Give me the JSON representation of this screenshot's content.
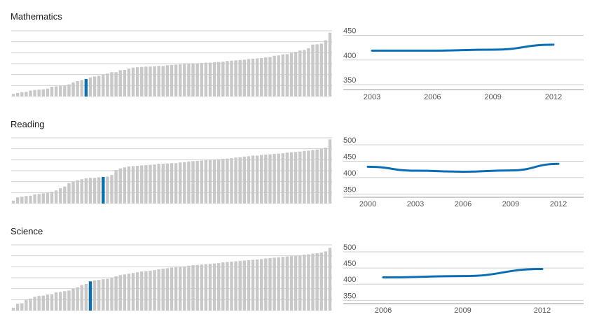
{
  "colors": {
    "bar": "#c8c8c8",
    "highlight": "#0a6eb4",
    "grid": "#cfcfcf",
    "line": "#0a6eb4"
  },
  "chart_data": [
    {
      "type": "bar",
      "title": "Mathematics",
      "highlight_index": 17,
      "values": [
        368,
        371,
        373,
        374,
        378,
        380,
        381,
        382,
        384,
        390,
        391,
        392,
        394,
        397,
        403,
        407,
        410,
        413,
        418,
        421,
        423,
        427,
        430,
        434,
        434,
        440,
        441,
        445,
        448,
        449,
        450,
        451,
        451,
        452,
        453,
        453,
        455,
        456,
        457,
        458,
        459,
        460,
        461,
        461,
        462,
        463,
        463,
        464,
        465,
        466,
        468,
        469,
        470,
        471,
        472,
        474,
        475,
        476,
        477,
        479,
        480,
        484,
        485,
        488,
        489,
        494,
        496,
        500,
        501,
        507,
        518,
        519,
        521,
        531,
        554
      ]
    },
    {
      "type": "line",
      "title": "",
      "x": [
        2003,
        2006,
        2009,
        2012
      ],
      "y": [
        419,
        419,
        421,
        431
      ],
      "yticks": [
        350,
        400,
        450
      ],
      "ylim": [
        340,
        465
      ]
    },
    {
      "type": "bar",
      "title": "Reading",
      "highlight_index": 21,
      "values": [
        384,
        394,
        396,
        398,
        399,
        403,
        404,
        406,
        408,
        411,
        415,
        422,
        427,
        437,
        441,
        446,
        449,
        452,
        453,
        453,
        455,
        456,
        457,
        462,
        477,
        482,
        485,
        488,
        489,
        490,
        491,
        492,
        493,
        494,
        496,
        496,
        497,
        498,
        498,
        500,
        501,
        503,
        504,
        505,
        506,
        507,
        508,
        509,
        510,
        511,
        512,
        513,
        515,
        516,
        518,
        519,
        521,
        521,
        523,
        524,
        525,
        526,
        527,
        528,
        530,
        531,
        532,
        533,
        535,
        536,
        538,
        539,
        541,
        545,
        570
      ]
    },
    {
      "type": "line",
      "title": "",
      "x": [
        2000,
        2003,
        2006,
        2009,
        2012
      ],
      "y": [
        433,
        421,
        418,
        422,
        442
      ],
      "yticks": [
        350,
        400,
        450,
        500
      ],
      "ylim": [
        340,
        515
      ]
    },
    {
      "type": "bar",
      "title": "Science",
      "highlight_index": 18,
      "values": [
        373,
        384,
        385,
        395,
        398,
        403,
        405,
        406,
        409,
        410,
        415,
        416,
        418,
        420,
        425,
        429,
        435,
        438,
        445,
        448,
        449,
        451,
        452,
        455,
        459,
        462,
        464,
        466,
        468,
        470,
        472,
        473,
        474,
        476,
        478,
        480,
        481,
        483,
        484,
        485,
        486,
        488,
        489,
        490,
        491,
        492,
        493,
        494,
        495,
        497,
        498,
        499,
        500,
        501,
        502,
        503,
        504,
        505,
        506,
        508,
        509,
        510,
        511,
        512,
        513,
        514,
        515,
        516,
        518,
        519,
        521,
        522,
        524,
        527,
        537
      ]
    },
    {
      "type": "line",
      "title": "",
      "x": [
        2006,
        2009,
        2012
      ],
      "y": [
        421,
        425,
        447
      ],
      "yticks": [
        350,
        400,
        450,
        500
      ],
      "ylim": [
        340,
        515
      ]
    }
  ]
}
